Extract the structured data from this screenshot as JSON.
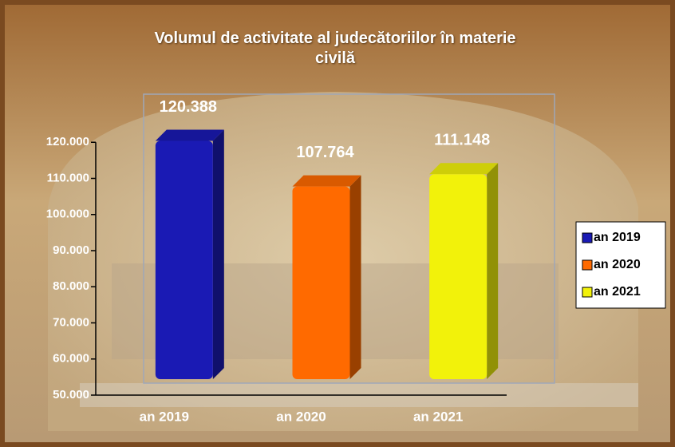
{
  "chart_data": {
    "type": "bar3d",
    "title": "Volumul de activitate al judecătoriilor în materie civilă",
    "categories": [
      "an 2019",
      "an 2020",
      "an 2021"
    ],
    "values": [
      120388,
      107764,
      111148
    ],
    "value_labels": [
      "120.388",
      "107.764",
      "111.148"
    ],
    "colors": [
      "#1a1ab4",
      "#ff6a00",
      "#f2f20a"
    ],
    "ylim": [
      50000,
      130000
    ],
    "yticks": [
      {
        "value": 50000,
        "label": "50.000"
      },
      {
        "value": 60000,
        "label": "60.000"
      },
      {
        "value": 70000,
        "label": "70.000"
      },
      {
        "value": 80000,
        "label": "80.000"
      },
      {
        "value": 90000,
        "label": "90.000"
      },
      {
        "value": 100000,
        "label": "100.000"
      },
      {
        "value": 110000,
        "label": "110.000"
      },
      {
        "value": 120000,
        "label": "120.000"
      }
    ],
    "legend": "right"
  }
}
